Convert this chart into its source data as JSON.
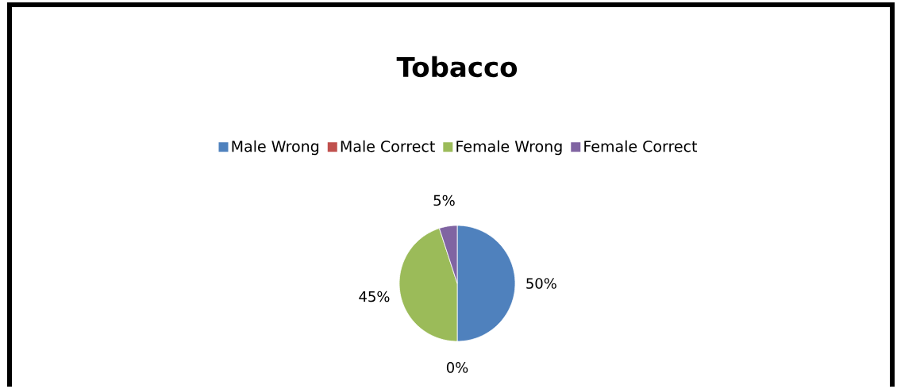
{
  "chart_data": {
    "type": "pie",
    "title": "Tobacco",
    "categories": [
      "Male Wrong",
      "Male Correct",
      "Female Wrong",
      "Female Correct"
    ],
    "values": [
      50,
      0,
      45,
      5
    ],
    "colors": [
      "#4f81bd",
      "#c0504d",
      "#9bbb59",
      "#8064a2"
    ],
    "value_labels": [
      "50%",
      "0%",
      "45%",
      "5%"
    ],
    "legend": "top"
  }
}
